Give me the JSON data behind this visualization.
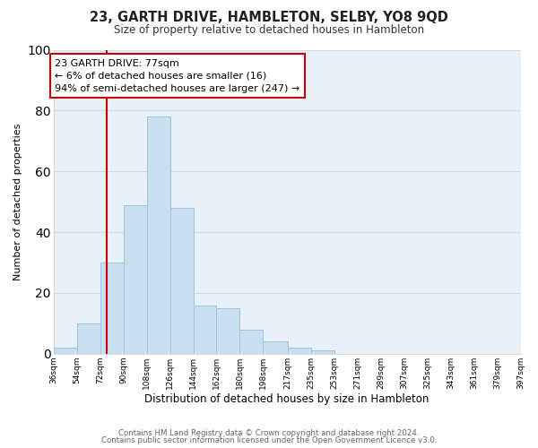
{
  "title": "23, GARTH DRIVE, HAMBLETON, SELBY, YO8 9QD",
  "subtitle": "Size of property relative to detached houses in Hambleton",
  "xlabel": "Distribution of detached houses by size in Hambleton",
  "ylabel": "Number of detached properties",
  "bar_color": "#c8dff0",
  "bar_edge_color": "#a0c4e0",
  "bin_edges": [
    36,
    54,
    72,
    90,
    108,
    126,
    144,
    162,
    180,
    198,
    217,
    235,
    253,
    271,
    289,
    307,
    325,
    343,
    361,
    379,
    397
  ],
  "bar_heights": [
    2,
    10,
    30,
    49,
    78,
    48,
    16,
    15,
    8,
    4,
    2,
    1,
    0,
    0,
    0,
    0,
    0,
    0,
    0,
    0
  ],
  "tick_labels": [
    "36sqm",
    "54sqm",
    "72sqm",
    "90sqm",
    "108sqm",
    "126sqm",
    "144sqm",
    "162sqm",
    "180sqm",
    "198sqm",
    "217sqm",
    "235sqm",
    "253sqm",
    "271sqm",
    "289sqm",
    "307sqm",
    "325sqm",
    "343sqm",
    "361sqm",
    "379sqm",
    "397sqm"
  ],
  "ylim": [
    0,
    100
  ],
  "vline_x": 77,
  "vline_color": "#cc0000",
  "annotation_title": "23 GARTH DRIVE: 77sqm",
  "annotation_line1": "← 6% of detached houses are smaller (16)",
  "annotation_line2": "94% of semi-detached houses are larger (247) →",
  "annotation_box_color": "#ffffff",
  "annotation_box_edge": "#cc0000",
  "grid_color": "#d0dce8",
  "background_color": "#ffffff",
  "plot_bg_color": "#e8f0f8",
  "footer_line1": "Contains HM Land Registry data © Crown copyright and database right 2024.",
  "footer_line2": "Contains public sector information licensed under the Open Government Licence v3.0."
}
